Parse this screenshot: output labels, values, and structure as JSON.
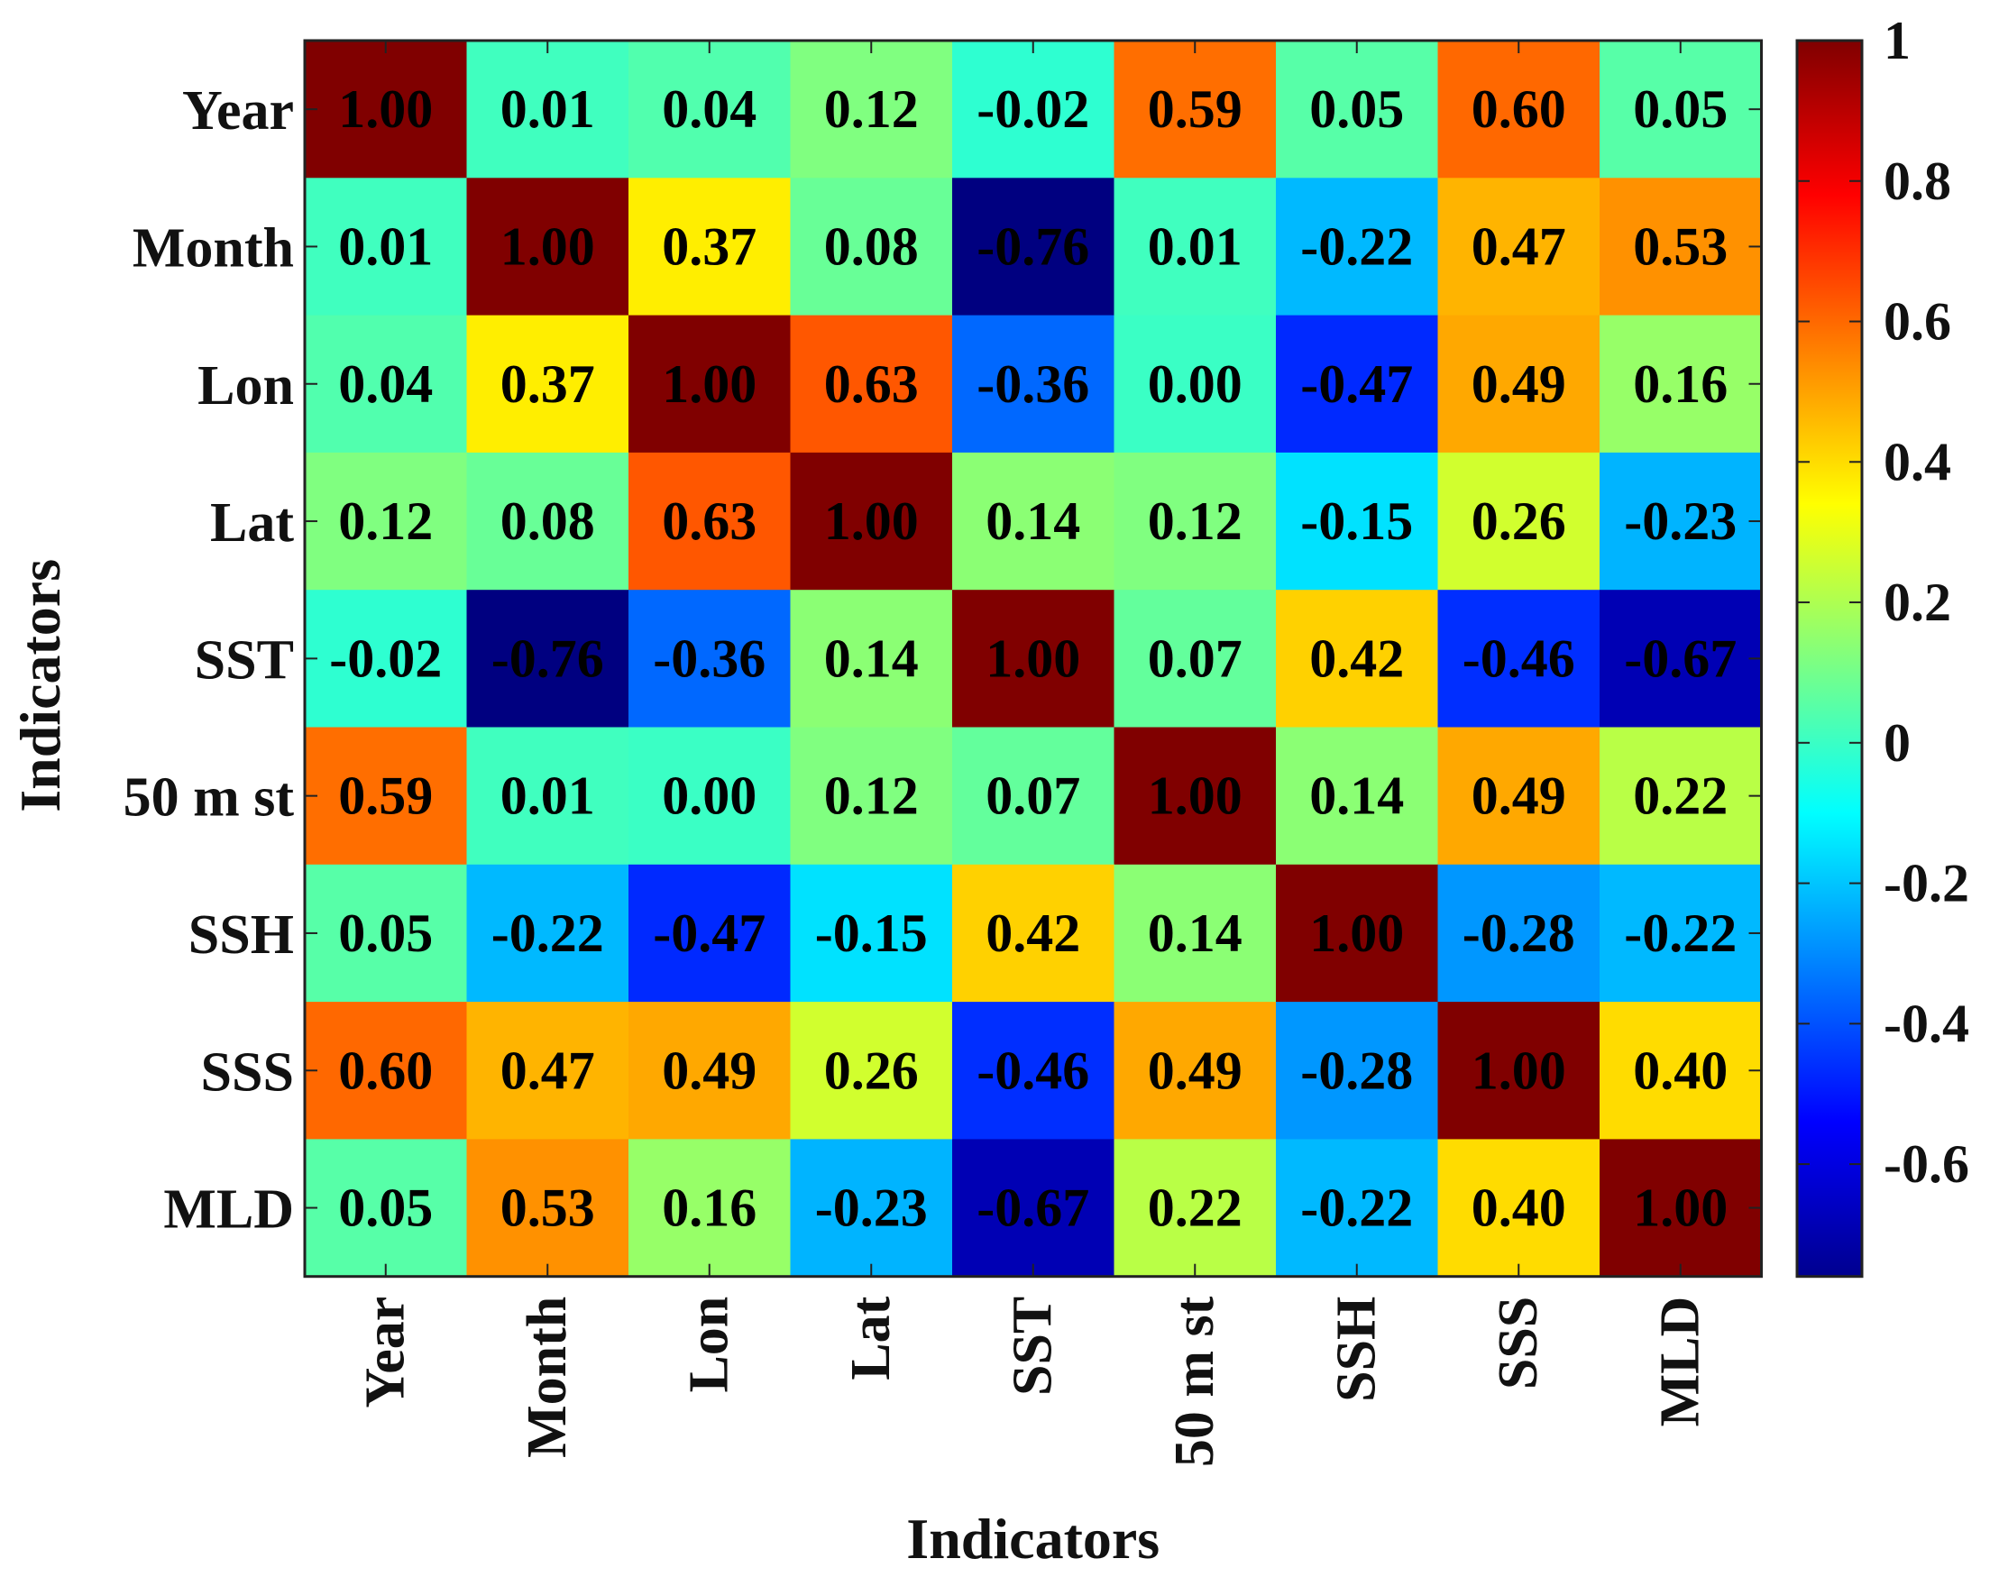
{
  "chart_data": {
    "type": "heatmap",
    "title": "",
    "xlabel": "Indicators",
    "ylabel": "Indicators",
    "categories": [
      "Year",
      "Month",
      "Lon",
      "Lat",
      "SST",
      "50 m st",
      "SSH",
      "SSS",
      "MLD"
    ],
    "values": [
      [
        1.0,
        0.01,
        0.04,
        0.12,
        -0.02,
        0.59,
        0.05,
        0.6,
        0.05
      ],
      [
        0.01,
        1.0,
        0.37,
        0.08,
        -0.76,
        0.01,
        -0.22,
        0.47,
        0.53
      ],
      [
        0.04,
        0.37,
        1.0,
        0.63,
        -0.36,
        0.0,
        -0.47,
        0.49,
        0.16
      ],
      [
        0.12,
        0.08,
        0.63,
        1.0,
        0.14,
        0.12,
        -0.15,
        0.26,
        -0.23
      ],
      [
        -0.02,
        -0.76,
        -0.36,
        0.14,
        1.0,
        0.07,
        0.42,
        -0.46,
        -0.67
      ],
      [
        0.59,
        0.01,
        0.0,
        0.12,
        0.07,
        1.0,
        0.14,
        0.49,
        0.22
      ],
      [
        0.05,
        -0.22,
        -0.47,
        -0.15,
        0.42,
        0.14,
        1.0,
        -0.28,
        -0.22
      ],
      [
        0.6,
        0.47,
        0.49,
        0.26,
        -0.46,
        0.49,
        -0.28,
        1.0,
        0.4
      ],
      [
        0.05,
        0.53,
        0.16,
        -0.23,
        -0.67,
        0.22,
        -0.22,
        0.4,
        1.0
      ]
    ],
    "color_range": [
      -0.76,
      1.0
    ],
    "colormap": "jet",
    "colorbar_ticks": [
      "1",
      "0.8",
      "0.6",
      "0.4",
      "0.2",
      "0",
      "-0.2",
      "-0.4",
      "-0.6"
    ],
    "colorbar_tick_values": [
      1,
      0.8,
      0.6,
      0.4,
      0.2,
      0,
      -0.2,
      -0.4,
      -0.6
    ]
  }
}
